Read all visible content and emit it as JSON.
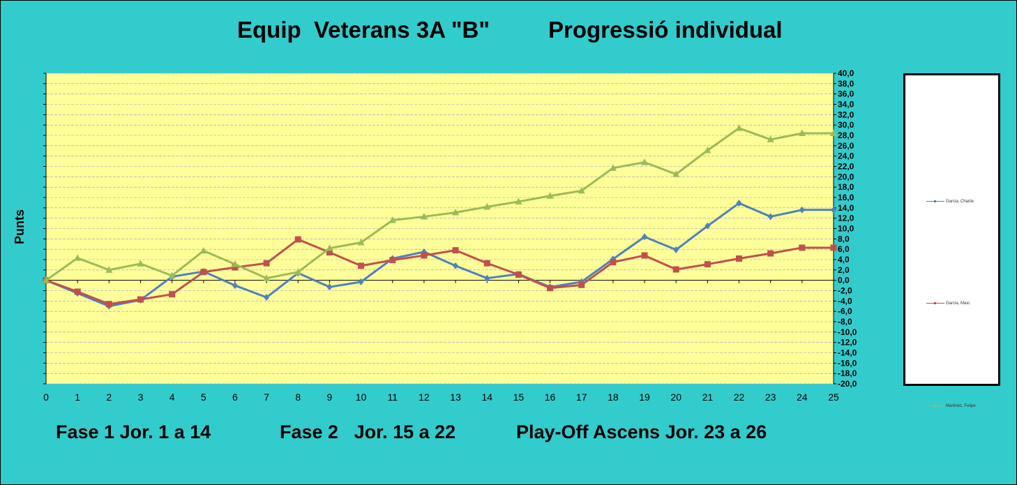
{
  "title": {
    "left": "Equip  Veterans 3A \"B\"",
    "right": "Progressió individual"
  },
  "phases": {
    "phase1": "Fase 1 Jor. 1 a 14",
    "phase2": "Fase 2   Jor. 15 a 22",
    "phase3": "Play-Off Ascens Jor. 23 a 26"
  },
  "chart_data": {
    "type": "line",
    "ylabel": "Punts",
    "xlabel": "",
    "x": [
      0,
      1,
      2,
      3,
      4,
      5,
      6,
      7,
      8,
      9,
      10,
      11,
      12,
      13,
      14,
      15,
      16,
      17,
      18,
      19,
      20,
      21,
      22,
      23,
      24,
      25
    ],
    "ylim": [
      -20,
      40
    ],
    "ytick_step": 2,
    "ytick_labels": [
      "40,0",
      "38,0",
      "36,0",
      "34,0",
      "32,0",
      "30,0",
      "28,0",
      "26,0",
      "24,0",
      "22,0",
      "20,0",
      "18,0",
      "16,0",
      "14,0",
      "12,0",
      "10,0",
      "8,0",
      "6,0",
      "4,0",
      "2,0",
      "0,0",
      "-2,0",
      "-4,0",
      "-6,0",
      "-8,0",
      "-10,0",
      "-12,0",
      "-14,0",
      "-16,0",
      "-18,0",
      "-20,0"
    ],
    "grid": true,
    "legend_position": "right",
    "plot_background": "#ffff99",
    "series": [
      {
        "name": "Garcia, Charlie",
        "color": "#4f81bd",
        "marker": "diamond",
        "values": [
          0,
          -2.5,
          -5,
          -3.8,
          0.7,
          1.7,
          -1,
          -3.3,
          1.4,
          -1.3,
          -0.3,
          4.2,
          5.5,
          2.8,
          0.4,
          1.2,
          -1.3,
          -0.3,
          4.1,
          8.4,
          5.9,
          10.5,
          14.9,
          12.3,
          13.6,
          13.6
        ]
      },
      {
        "name": "Garcia, Maxi.",
        "color": "#c0504d",
        "marker": "square",
        "values": [
          0,
          -2.2,
          -4.6,
          -3.7,
          -2.7,
          1.6,
          2.5,
          3.3,
          7.9,
          5.4,
          2.8,
          3.9,
          4.8,
          5.8,
          3.3,
          1.1,
          -1.5,
          -0.9,
          3.5,
          4.8,
          2.1,
          3.1,
          4.2,
          5.2,
          6.3,
          6.3
        ]
      },
      {
        "name": "Martinez, Felipe",
        "color": "#9bbb59",
        "marker": "triangle",
        "values": [
          0,
          4.3,
          2,
          3.2,
          0.9,
          5.7,
          3.1,
          0.4,
          1.6,
          6.2,
          7.3,
          11.6,
          12.3,
          13.1,
          14.2,
          15.2,
          16.3,
          17.3,
          21.7,
          22.8,
          20.5,
          25.1,
          29.4,
          27.2,
          28.4,
          28.4
        ]
      }
    ]
  }
}
